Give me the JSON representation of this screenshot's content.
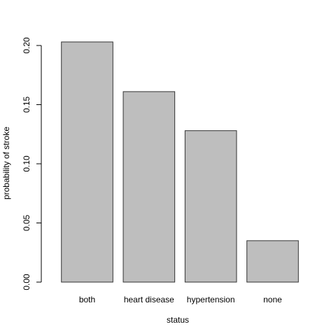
{
  "chart_data": {
    "type": "bar",
    "title": "",
    "xlabel": "status",
    "ylabel": "probability of stroke",
    "categories": [
      "both",
      "heart disease",
      "hypertension",
      "none"
    ],
    "values": [
      0.203,
      0.161,
      0.128,
      0.035
    ],
    "ylim": [
      0,
      0.2
    ],
    "yticks": [
      "0.00",
      "0.05",
      "0.10",
      "0.15",
      "0.20"
    ],
    "grid": false,
    "legend": "none",
    "colors": {
      "bar_fill": "#bebebe",
      "bar_stroke": "#333333"
    }
  }
}
